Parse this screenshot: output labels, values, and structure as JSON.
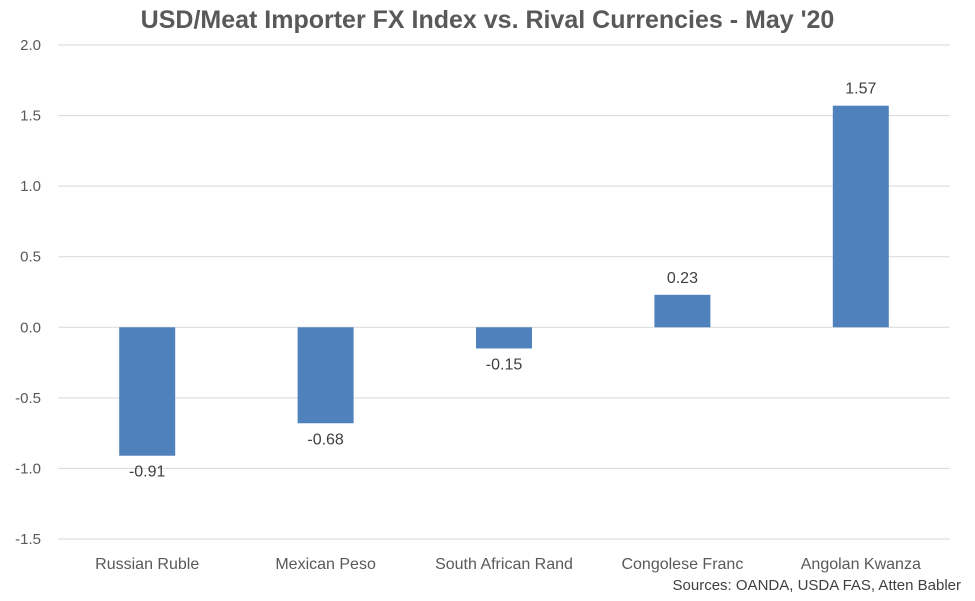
{
  "chart_data": {
    "type": "bar",
    "title": "USD/Meat Importer FX Index vs. Rival Currencies - May '20",
    "categories": [
      "Russian Ruble",
      "Mexican Peso",
      "South African Rand",
      "Congolese Franc",
      "Angolan Kwanza"
    ],
    "values": [
      -0.91,
      -0.68,
      -0.15,
      0.23,
      1.57
    ],
    "value_labels": [
      "-0.91",
      "-0.68",
      "-0.15",
      "0.23",
      "1.57"
    ],
    "xlabel": "",
    "ylabel": "",
    "ylim": [
      -1.5,
      2.0
    ],
    "yticks": [
      "2.0",
      "1.5",
      "1.0",
      "0.5",
      "0.0",
      "-0.5",
      "-1.0",
      "-1.5"
    ],
    "ytick_values": [
      2.0,
      1.5,
      1.0,
      0.5,
      0.0,
      -0.5,
      -1.0,
      -1.5
    ],
    "grid": true,
    "legend": "none",
    "bar_color": "#4f81bd",
    "grid_color": "#d9d9d9",
    "source": "Sources: OANDA, USDA FAS, Atten Babler"
  }
}
